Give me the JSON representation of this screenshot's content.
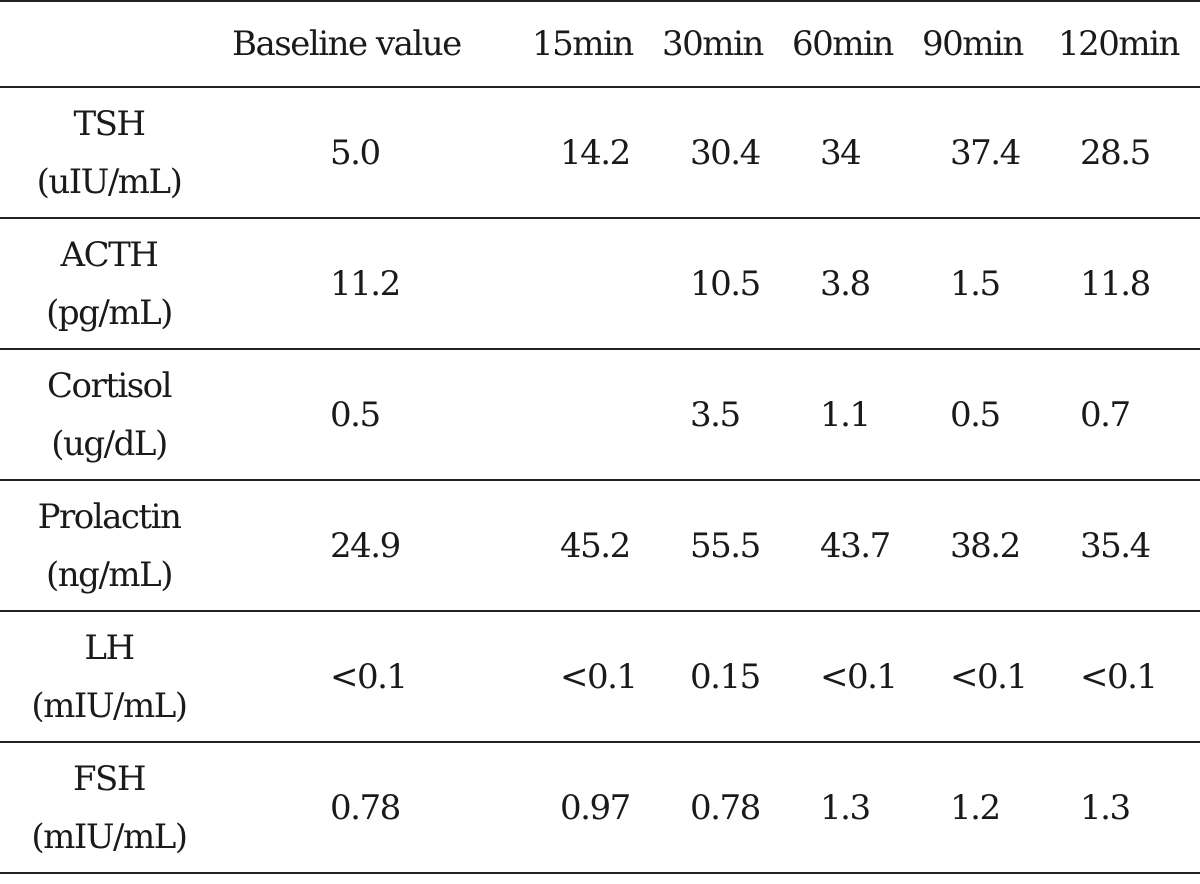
{
  "table": {
    "headers": [
      "",
      "Baseline  value",
      "15min",
      "30min",
      "60min",
      "90min",
      "120min"
    ],
    "rows": [
      {
        "analyte": "TSH",
        "unit": "(uIU/mL)",
        "values": [
          "5.0",
          "14.2",
          "30.4",
          "34",
          "37.4",
          "28.5"
        ]
      },
      {
        "analyte": "ACTH",
        "unit": "(pg/mL)",
        "values": [
          "11.2",
          "",
          "10.5",
          "3.8",
          "1.5",
          "11.8"
        ]
      },
      {
        "analyte": "Cortisol",
        "unit": "(ug/dL)",
        "values": [
          "0.5",
          "",
          "3.5",
          "1.1",
          "0.5",
          "0.7"
        ]
      },
      {
        "analyte": "Prolactin",
        "unit": "(ng/mL)",
        "values": [
          "24.9",
          "45.2",
          "55.5",
          "43.7",
          "38.2",
          "35.4"
        ]
      },
      {
        "analyte": "LH",
        "unit": "(mIU/mL)",
        "values": [
          "<0.1",
          "<0.1",
          "0.15",
          "<0.1",
          "<0.1",
          "<0.1"
        ]
      },
      {
        "analyte": "FSH",
        "unit": "(mIU/mL)",
        "values": [
          "0.78",
          "0.97",
          "0.78",
          "1.3",
          "1.2",
          "1.3"
        ]
      }
    ]
  }
}
